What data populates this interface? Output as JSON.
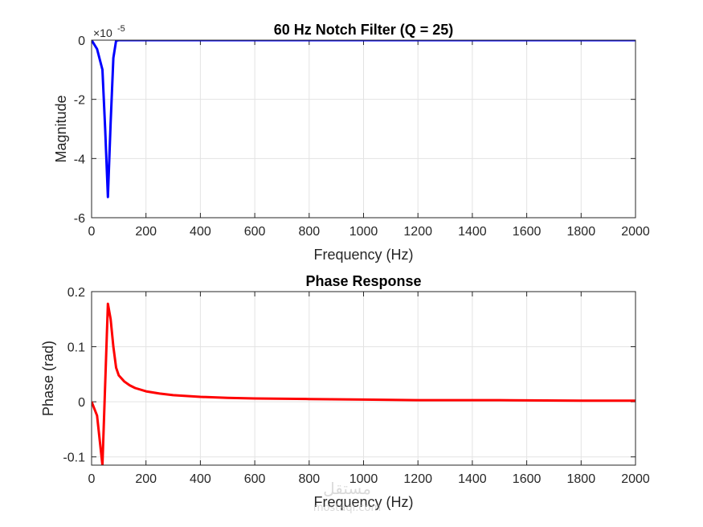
{
  "chart_data": [
    {
      "type": "line",
      "title": "60 Hz Notch Filter (Q = 25)",
      "xlabel": "Frequency (Hz)",
      "ylabel": "Magnitude",
      "y_exponent_label": "×10",
      "y_exponent_power": "-5",
      "xlim": [
        0,
        2000
      ],
      "ylim": [
        -6,
        0
      ],
      "x_ticks": [
        "0",
        "200",
        "400",
        "600",
        "800",
        "1000",
        "1200",
        "1400",
        "1600",
        "1800",
        "2000"
      ],
      "y_ticks": [
        "0",
        "-2",
        "-4",
        "-6"
      ],
      "grid": true,
      "color": "#0000ff",
      "series": [
        {
          "x": [
            0,
            20,
            40,
            50,
            60,
            70,
            80,
            90,
            100,
            150,
            200,
            400,
            800,
            1200,
            1600,
            2000
          ],
          "y": [
            0,
            -0.3,
            -1.0,
            -3.0,
            -5.3,
            -2.8,
            -0.6,
            -0.02,
            0,
            0,
            0,
            0,
            0,
            0,
            0,
            0
          ]
        }
      ]
    },
    {
      "type": "line",
      "title": "Phase Response",
      "xlabel": "Frequency (Hz)",
      "ylabel": "Phase (rad)",
      "xlim": [
        0,
        2000
      ],
      "ylim": [
        -0.115,
        0.2
      ],
      "x_ticks": [
        "0",
        "200",
        "400",
        "600",
        "800",
        "1000",
        "1200",
        "1400",
        "1600",
        "1800",
        "2000"
      ],
      "y_ticks": [
        "0.2",
        "0.1",
        "0",
        "-0.1"
      ],
      "grid": true,
      "color": "#ff0000",
      "series": [
        {
          "x": [
            0,
            20,
            40,
            60,
            70,
            80,
            90,
            100,
            120,
            140,
            160,
            200,
            250,
            300,
            400,
            500,
            600,
            800,
            1000,
            1200,
            1500,
            1800,
            2000
          ],
          "y": [
            0,
            -0.025,
            -0.115,
            0.178,
            0.15,
            0.1,
            0.062,
            0.048,
            0.037,
            0.03,
            0.025,
            0.019,
            0.015,
            0.012,
            0.009,
            0.007,
            0.006,
            0.005,
            0.004,
            0.003,
            0.003,
            0.002,
            0.002
          ]
        }
      ]
    }
  ],
  "watermark": {
    "text": "مستقل",
    "url": "mostaql.com"
  }
}
